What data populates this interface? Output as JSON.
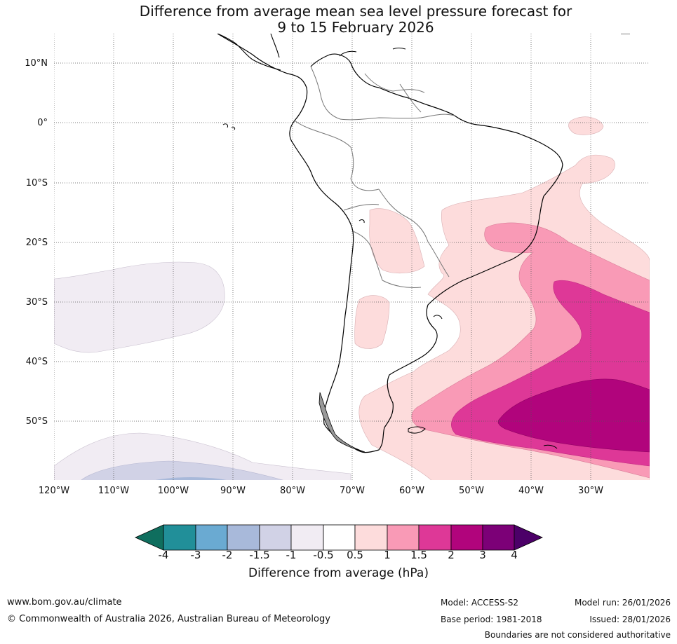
{
  "title": {
    "line1": "Difference from average mean sea level pressure forecast for",
    "line2": "9 to 15 February 2026"
  },
  "map": {
    "lat_labels": [
      "10°N",
      "0°",
      "10°S",
      "20°S",
      "30°S",
      "40°S",
      "50°S"
    ],
    "lon_labels": [
      "120°W",
      "110°W",
      "100°W",
      "90°W",
      "80°W",
      "70°W",
      "60°W",
      "50°W",
      "40°W",
      "30°W"
    ]
  },
  "colorbar": {
    "ticks": [
      "-4",
      "-3",
      "-2",
      "-1.5",
      "-1",
      "-0.5",
      "0.5",
      "1",
      "1.5",
      "2",
      "3",
      "4"
    ],
    "colors": [
      "#0f6e5e",
      "#218f99",
      "#6aaad2",
      "#a8b9da",
      "#d1d2e6",
      "#f1ecf3",
      "#ffffff",
      "#fddcdc",
      "#f99ab6",
      "#de3897",
      "#b1047c",
      "#7c0077",
      "#4c0068"
    ],
    "label": "Difference from average (hPa)"
  },
  "footer": {
    "url": "www.bom.gov.au/climate",
    "copyright": "© Commonwealth of Australia 2026, Australian Bureau of Meteorology",
    "model": "Model: ACCESS-S2",
    "base_period": "Base period: 1981-2018",
    "model_run": "Model run: 26/01/2026",
    "issued": "Issued: 28/01/2026",
    "disclaimer": "Boundaries are not considered authoritative"
  }
}
